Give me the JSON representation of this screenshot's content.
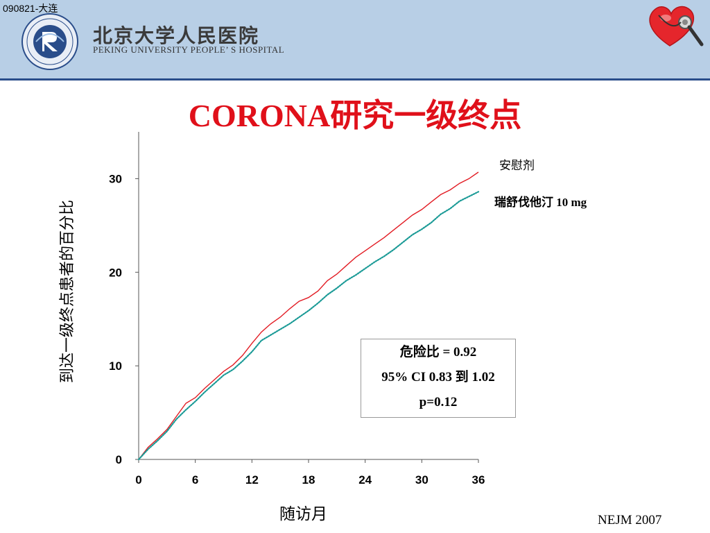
{
  "header": {
    "slide_id": "090821-大连",
    "hospital_name_cn": "北京大学人民医院",
    "hospital_name_en": "PEKING UNIVERSITY PEOPLE’ S HOSPITAL"
  },
  "title": "CORONA研究一级终点",
  "stats_box": {
    "line1": "危险比 = 0.92",
    "line2": "95% CI 0.83 到 1.02",
    "line3": "p=0.12"
  },
  "source": "NEJM  2007",
  "colors": {
    "title": "#e0101a",
    "placebo": "#e21b23",
    "rosuvastatin": "#1a9a96",
    "header_bg": "#b8cfe6"
  },
  "chart_data": {
    "type": "line",
    "xlabel": "随访月",
    "ylabel": "到达一级终点患者的百分比",
    "xlim": [
      0,
      36
    ],
    "ylim": [
      0,
      35
    ],
    "xticks": [
      "0",
      "6",
      "12",
      "18",
      "24",
      "30",
      "36"
    ],
    "yticks": [
      "0",
      "10",
      "20",
      "30"
    ],
    "series": [
      {
        "name": "安慰剂",
        "style": "solid",
        "x": [
          0,
          1,
          2,
          3,
          4,
          5,
          6,
          7,
          8,
          9,
          10,
          11,
          12,
          13,
          14,
          15,
          16,
          17,
          18,
          19,
          20,
          21,
          22,
          23,
          24,
          25,
          26,
          27,
          28,
          29,
          30,
          31,
          32,
          33,
          34,
          35,
          36
        ],
        "y": [
          0,
          1.3,
          2.2,
          3.2,
          4.6,
          6.0,
          6.6,
          7.6,
          8.5,
          9.4,
          10.1,
          11.1,
          12.4,
          13.6,
          14.5,
          15.2,
          16.1,
          16.9,
          17.3,
          18.0,
          19.1,
          19.8,
          20.7,
          21.6,
          22.3,
          23.0,
          23.7,
          24.5,
          25.3,
          26.1,
          26.7,
          27.5,
          28.3,
          28.8,
          29.5,
          30.0,
          30.7
        ]
      },
      {
        "name": "瑞舒伐他汀 10 mg",
        "style": "dotted",
        "x": [
          0,
          1,
          2,
          3,
          4,
          5,
          6,
          7,
          8,
          9,
          10,
          11,
          12,
          13,
          14,
          15,
          16,
          17,
          18,
          19,
          20,
          21,
          22,
          23,
          24,
          25,
          26,
          27,
          28,
          29,
          30,
          31,
          32,
          33,
          34,
          35,
          36
        ],
        "y": [
          0,
          1.1,
          2.0,
          3.0,
          4.3,
          5.3,
          6.2,
          7.2,
          8.1,
          9.0,
          9.6,
          10.5,
          11.5,
          12.7,
          13.3,
          13.9,
          14.5,
          15.2,
          15.9,
          16.7,
          17.6,
          18.3,
          19.1,
          19.7,
          20.4,
          21.1,
          21.7,
          22.4,
          23.2,
          24.0,
          24.6,
          25.3,
          26.2,
          26.8,
          27.6,
          28.1,
          28.6
        ]
      }
    ]
  }
}
